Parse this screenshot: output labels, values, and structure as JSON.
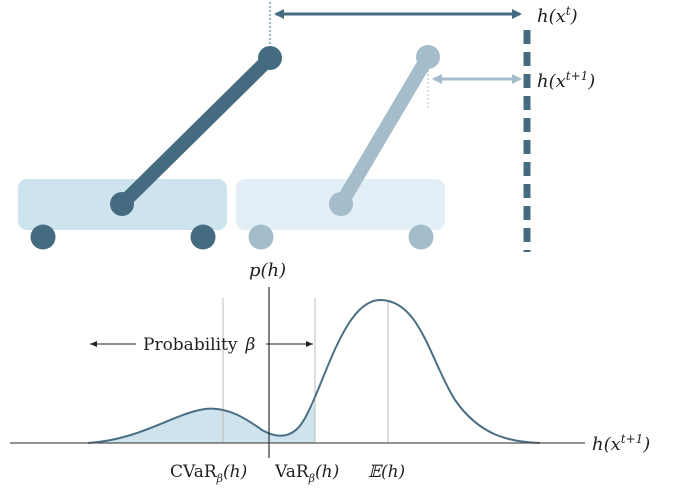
{
  "labels": {
    "h_t_func": "h(x",
    "h_t_sup": "t",
    "h_t_close": ")",
    "h_t1_func": "h(x",
    "h_t1_sup": "t+1",
    "h_t1_close": ")",
    "p_h": "p(h)",
    "axis_func": "h(x",
    "axis_sup": "t+1",
    "axis_close": ")",
    "probability": "Probability",
    "beta": "β",
    "cvar_main": "CVaR",
    "cvar_sub": "β",
    "cvar_arg": "(h)",
    "var_main": "VaR",
    "var_sub": "β",
    "var_arg": "(h)",
    "expectation": "𝔼(h)"
  },
  "colors": {
    "dark": "#446b80",
    "light": "#a5bccb",
    "cart_dark_fill": "#cde4ef",
    "cart_light_fill": "#e2eff6",
    "shade": "#cfe3ee",
    "curve": "#4a6f84",
    "axis": "#555555",
    "guide": "#bbbbbb"
  }
}
